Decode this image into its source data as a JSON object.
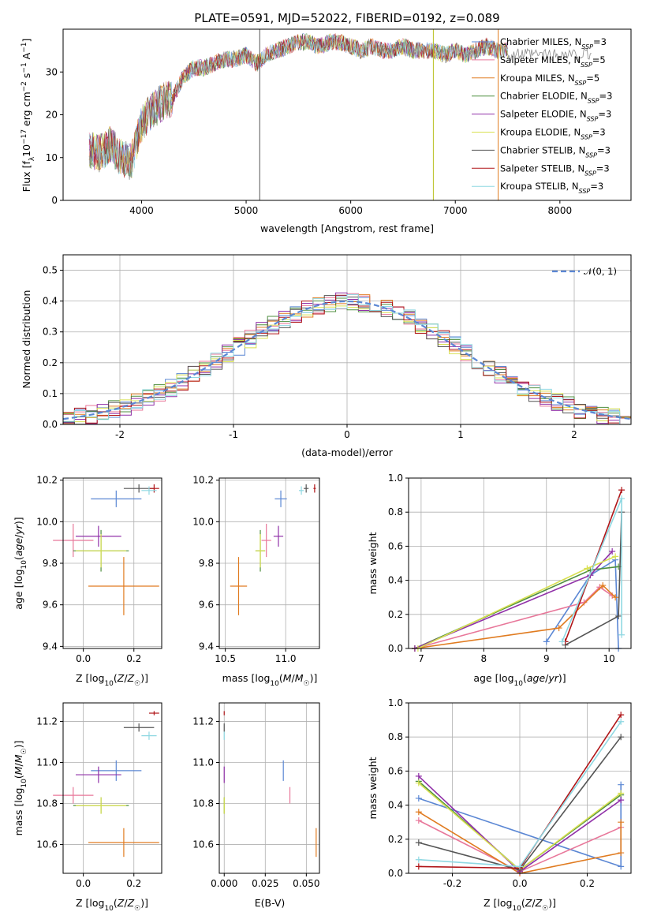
{
  "title": "PLATE=0591, MJD=52022, FIBERID=0192, z=0.089",
  "colors": {
    "Chabrier MILES": "#5b87d4",
    "Salpeter MILES": "#e8779a",
    "Kroupa MILES": "#e07b20",
    "Chabrier ELODIE": "#4f8f3f",
    "Salpeter ELODIE": "#9030a8",
    "Kroupa ELODIE": "#d8e050",
    "Chabrier STELIB": "#555555",
    "Salpeter STELIB": "#b01518",
    "Kroupa STELIB": "#8fd8e2"
  },
  "legend": [
    {
      "name": "Chabrier MILES",
      "nssp": "3"
    },
    {
      "name": "Salpeter MILES",
      "nssp": "5"
    },
    {
      "name": "Kroupa MILES",
      "nssp": "5"
    },
    {
      "name": "Chabrier ELODIE",
      "nssp": "3"
    },
    {
      "name": "Salpeter ELODIE",
      "nssp": "3"
    },
    {
      "name": "Kroupa ELODIE",
      "nssp": "3"
    },
    {
      "name": "Chabrier STELIB",
      "nssp": "3"
    },
    {
      "name": "Salpeter STELIB",
      "nssp": "3"
    },
    {
      "name": "Kroupa STELIB",
      "nssp": "3"
    }
  ],
  "chart_data": [
    {
      "type": "line",
      "id": "spectrum",
      "xlabel": "wavelength [Angstrom, rest frame]",
      "ylabel": "Flux [f_λ10^-17 erg cm^-2 s^-1 A^-1]",
      "xlim": [
        3250,
        8680
      ],
      "ylim": [
        0,
        40
      ],
      "xticks": [
        4000,
        5000,
        6000,
        7000,
        8000
      ],
      "yticks": [
        0,
        10,
        20,
        30
      ],
      "x": [
        3500,
        3600,
        3700,
        3800,
        3900,
        4000,
        4100,
        4200,
        4300,
        4400,
        4500,
        4600,
        4700,
        4800,
        4900,
        5000,
        5100,
        5200,
        5300,
        5400,
        5500,
        5600,
        5700,
        5800,
        5900,
        6000,
        6100,
        6200,
        6300,
        6400,
        6500,
        6600,
        6700,
        6800,
        6900,
        7000,
        7100,
        7200,
        7300,
        7400,
        7500
      ],
      "y": [
        12,
        11,
        13,
        10,
        9,
        18,
        21,
        23,
        24,
        29,
        31,
        31,
        32,
        33,
        33,
        34,
        32,
        34,
        35,
        36,
        37,
        37,
        36,
        37,
        37,
        36,
        35,
        36,
        35,
        35,
        36,
        35,
        35,
        35,
        34,
        35,
        34,
        35,
        36,
        35,
        35
      ],
      "grid": false
    },
    {
      "type": "histogram",
      "id": "residuals",
      "xlabel": "(data-model)/error",
      "ylabel": "Normed distribution",
      "xlim": [
        -2.5,
        2.5
      ],
      "ylim": [
        0,
        0.55
      ],
      "xticks": [
        -2,
        -1,
        0,
        1,
        2
      ],
      "yticks": [
        0.0,
        0.1,
        0.2,
        0.3,
        0.4,
        0.5
      ],
      "reference_label": "𝒩(0, 1)",
      "reference": "normal pdf, mean 0, sigma 1",
      "grid": true
    },
    {
      "type": "scatter",
      "id": "age-vs-Z",
      "xlabel": "Z [log10(Z/Z☉)]",
      "ylabel": "age  [log10(age/yr)]",
      "xlim": [
        -0.08,
        0.31
      ],
      "ylim": [
        9.39,
        10.21
      ],
      "xticks": [
        0.0,
        0.2
      ],
      "yticks": [
        9.4,
        9.6,
        9.8,
        10.0,
        10.2
      ],
      "grid": true,
      "points": [
        {
          "series": "Chabrier MILES",
          "x": 0.13,
          "y": 10.11,
          "xerr": 0.1,
          "yerr": 0.04
        },
        {
          "series": "Salpeter MILES",
          "x": -0.04,
          "y": 9.91,
          "xerr": 0.08,
          "yerr": 0.08
        },
        {
          "series": "Kroupa MILES",
          "x": 0.16,
          "y": 9.69,
          "xerr": 0.14,
          "yerr": 0.14
        },
        {
          "series": "Chabrier ELODIE",
          "x": 0.07,
          "y": 9.86,
          "xerr": 0.11,
          "yerr": 0.1
        },
        {
          "series": "Salpeter ELODIE",
          "x": 0.06,
          "y": 9.93,
          "xerr": 0.09,
          "yerr": 0.05
        },
        {
          "series": "Kroupa ELODIE",
          "x": 0.07,
          "y": 9.86,
          "xerr": 0.1,
          "yerr": 0.08
        },
        {
          "series": "Chabrier STELIB",
          "x": 0.22,
          "y": 10.16,
          "xerr": 0.06,
          "yerr": 0.02
        },
        {
          "series": "Salpeter STELIB",
          "x": 0.28,
          "y": 10.16,
          "xerr": 0.02,
          "yerr": 0.02
        },
        {
          "series": "Kroupa STELIB",
          "x": 0.26,
          "y": 10.15,
          "xerr": 0.03,
          "yerr": 0.02
        }
      ]
    },
    {
      "type": "scatter",
      "id": "age-vs-mass",
      "xlabel": "mass [log10(M/M☉)]",
      "ylabel": "",
      "xlim": [
        10.45,
        11.28
      ],
      "ylim": [
        9.39,
        10.21
      ],
      "xticks": [
        10.5,
        11.0
      ],
      "yticks": [
        9.4,
        9.6,
        9.8,
        10.0,
        10.2
      ],
      "grid": true,
      "points": [
        {
          "series": "Chabrier MILES",
          "x": 10.96,
          "y": 10.11,
          "xerr": 0.05,
          "yerr": 0.04
        },
        {
          "series": "Salpeter MILES",
          "x": 10.84,
          "y": 9.91,
          "xerr": 0.04,
          "yerr": 0.08
        },
        {
          "series": "Kroupa MILES",
          "x": 10.61,
          "y": 9.69,
          "xerr": 0.07,
          "yerr": 0.14
        },
        {
          "series": "Chabrier ELODIE",
          "x": 10.79,
          "y": 9.86,
          "xerr": 0.04,
          "yerr": 0.1
        },
        {
          "series": "Salpeter ELODIE",
          "x": 10.94,
          "y": 9.93,
          "xerr": 0.04,
          "yerr": 0.05
        },
        {
          "series": "Kroupa ELODIE",
          "x": 10.79,
          "y": 9.86,
          "xerr": 0.04,
          "yerr": 0.08
        },
        {
          "series": "Chabrier STELIB",
          "x": 11.17,
          "y": 10.16,
          "xerr": 0.02,
          "yerr": 0.02
        },
        {
          "series": "Salpeter STELIB",
          "x": 11.24,
          "y": 10.16,
          "xerr": 0.01,
          "yerr": 0.02
        },
        {
          "series": "Kroupa STELIB",
          "x": 11.13,
          "y": 10.15,
          "xerr": 0.02,
          "yerr": 0.02
        }
      ]
    },
    {
      "type": "line",
      "id": "weight-vs-age",
      "xlabel": "age  [log10(age/yr)]",
      "ylabel": "mass weight",
      "xlim": [
        6.8,
        10.35
      ],
      "ylim": [
        0,
        1
      ],
      "xticks": [
        7,
        8,
        9,
        10
      ],
      "yticks": [
        0.0,
        0.2,
        0.4,
        0.6,
        0.8,
        1.0
      ],
      "grid": true,
      "series": [
        {
          "series": "Chabrier MILES",
          "x": [
            9.0,
            9.7,
            10.1,
            10.15
          ],
          "y": [
            0.04,
            0.43,
            0.52,
            0.0
          ]
        },
        {
          "series": "Salpeter MILES",
          "x": [
            6.9,
            9.6,
            9.85,
            10.05
          ],
          "y": [
            0.0,
            0.27,
            0.36,
            0.31
          ]
        },
        {
          "series": "Kroupa MILES",
          "x": [
            6.9,
            9.2,
            9.9,
            10.1
          ],
          "y": [
            0.0,
            0.12,
            0.37,
            0.3
          ]
        },
        {
          "series": "Chabrier ELODIE",
          "x": [
            6.9,
            9.7,
            10.15
          ],
          "y": [
            0.0,
            0.46,
            0.48
          ]
        },
        {
          "series": "Salpeter ELODIE",
          "x": [
            6.9,
            9.7,
            10.05
          ],
          "y": [
            0.0,
            0.43,
            0.57
          ]
        },
        {
          "series": "Kroupa ELODIE",
          "x": [
            6.95,
            9.65,
            10.1
          ],
          "y": [
            0.0,
            0.47,
            0.54
          ]
        },
        {
          "series": "Chabrier STELIB",
          "x": [
            9.3,
            10.15,
            10.2
          ],
          "y": [
            0.02,
            0.19,
            0.8
          ]
        },
        {
          "series": "Salpeter STELIB",
          "x": [
            9.3,
            10.2
          ],
          "y": [
            0.04,
            0.93
          ]
        },
        {
          "series": "Kroupa STELIB",
          "x": [
            9.25,
            10.2,
            10.2
          ],
          "y": [
            0.04,
            0.88,
            0.08
          ]
        }
      ]
    },
    {
      "type": "scatter",
      "id": "mass-vs-Z",
      "xlabel": "Z [log10(Z/Z☉)]",
      "ylabel": "mass [log10(M/M☉)]",
      "xlim": [
        -0.08,
        0.31
      ],
      "ylim": [
        10.46,
        11.29
      ],
      "xticks": [
        0.0,
        0.2
      ],
      "yticks": [
        10.6,
        10.8,
        11.0,
        11.2
      ],
      "grid": true,
      "points": [
        {
          "series": "Chabrier MILES",
          "x": 0.13,
          "y": 10.96,
          "xerr": 0.1,
          "yerr": 0.05
        },
        {
          "series": "Salpeter MILES",
          "x": -0.04,
          "y": 10.84,
          "xerr": 0.08,
          "yerr": 0.04
        },
        {
          "series": "Kroupa MILES",
          "x": 0.16,
          "y": 10.61,
          "xerr": 0.14,
          "yerr": 0.07
        },
        {
          "series": "Chabrier ELODIE",
          "x": 0.07,
          "y": 10.79,
          "xerr": 0.11,
          "yerr": 0.04
        },
        {
          "series": "Salpeter ELODIE",
          "x": 0.06,
          "y": 10.94,
          "xerr": 0.09,
          "yerr": 0.04
        },
        {
          "series": "Kroupa ELODIE",
          "x": 0.07,
          "y": 10.79,
          "xerr": 0.1,
          "yerr": 0.04
        },
        {
          "series": "Chabrier STELIB",
          "x": 0.22,
          "y": 11.17,
          "xerr": 0.06,
          "yerr": 0.02
        },
        {
          "series": "Salpeter STELIB",
          "x": 0.28,
          "y": 11.24,
          "xerr": 0.02,
          "yerr": 0.01
        },
        {
          "series": "Kroupa STELIB",
          "x": 0.26,
          "y": 11.13,
          "xerr": 0.03,
          "yerr": 0.02
        }
      ]
    },
    {
      "type": "scatter",
      "id": "mass-vs-EBV",
      "xlabel": "E(B-V)",
      "ylabel": "",
      "xlim": [
        -0.003,
        0.058
      ],
      "ylim": [
        10.46,
        11.29
      ],
      "xticks": [
        0.0,
        0.025,
        0.05
      ],
      "xtick_labels": [
        "0.000",
        "0.025",
        "0.050"
      ],
      "yticks": [
        10.6,
        10.8,
        11.0,
        11.2
      ],
      "grid": true,
      "points": [
        {
          "series": "Chabrier MILES",
          "x": 0.036,
          "y": 10.96,
          "xerr": 0.0,
          "yerr": 0.05
        },
        {
          "series": "Salpeter MILES",
          "x": 0.04,
          "y": 10.84,
          "xerr": 0.0,
          "yerr": 0.04
        },
        {
          "series": "Kroupa MILES",
          "x": 0.056,
          "y": 10.61,
          "xerr": 0.0,
          "yerr": 0.07
        },
        {
          "series": "Chabrier ELODIE",
          "x": 0.0,
          "y": 10.79,
          "xerr": 0.0,
          "yerr": 0.04
        },
        {
          "series": "Salpeter ELODIE",
          "x": 0.0,
          "y": 10.94,
          "xerr": 0.0,
          "yerr": 0.04
        },
        {
          "series": "Kroupa ELODIE",
          "x": 0.0,
          "y": 10.79,
          "xerr": 0.0,
          "yerr": 0.04
        },
        {
          "series": "Chabrier STELIB",
          "x": 0.0,
          "y": 11.17,
          "xerr": 0.0,
          "yerr": 0.02
        },
        {
          "series": "Salpeter STELIB",
          "x": 0.0,
          "y": 11.24,
          "xerr": 0.0,
          "yerr": 0.01
        },
        {
          "series": "Kroupa STELIB",
          "x": 0.0,
          "y": 11.13,
          "xerr": 0.0,
          "yerr": 0.02
        }
      ]
    },
    {
      "type": "line",
      "id": "weight-vs-Z",
      "xlabel": "Z [log10(Z/Z☉)]",
      "ylabel": "mass weight",
      "xlim": [
        -0.33,
        0.33
      ],
      "ylim": [
        0,
        1
      ],
      "xticks": [
        -0.2,
        0.0,
        0.2
      ],
      "yticks": [
        0.0,
        0.2,
        0.4,
        0.6,
        0.8,
        1.0
      ],
      "grid": true,
      "series": [
        {
          "series": "Chabrier MILES",
          "x": [
            -0.3,
            0.3,
            0.3
          ],
          "y": [
            0.44,
            0.04,
            0.52
          ]
        },
        {
          "series": "Salpeter MILES",
          "x": [
            -0.3,
            0.0,
            0.3
          ],
          "y": [
            0.31,
            0.01,
            0.27
          ]
        },
        {
          "series": "Kroupa MILES",
          "x": [
            -0.3,
            0.0,
            0.3,
            0.3
          ],
          "y": [
            0.36,
            0.0,
            0.12,
            0.3
          ]
        },
        {
          "series": "Chabrier ELODIE",
          "x": [
            -0.3,
            0.0,
            0.3
          ],
          "y": [
            0.54,
            0.02,
            0.46
          ]
        },
        {
          "series": "Salpeter ELODIE",
          "x": [
            -0.3,
            0.0,
            0.3
          ],
          "y": [
            0.57,
            0.01,
            0.43
          ]
        },
        {
          "series": "Kroupa ELODIE",
          "x": [
            -0.3,
            0.0,
            0.3
          ],
          "y": [
            0.53,
            0.02,
            0.47
          ]
        },
        {
          "series": "Chabrier STELIB",
          "x": [
            -0.3,
            0.0,
            0.3
          ],
          "y": [
            0.18,
            0.02,
            0.8
          ]
        },
        {
          "series": "Salpeter STELIB",
          "x": [
            -0.3,
            0.0,
            0.3
          ],
          "y": [
            0.04,
            0.03,
            0.93
          ]
        },
        {
          "series": "Kroupa STELIB",
          "x": [
            -0.3,
            0.0,
            0.3
          ],
          "y": [
            0.08,
            0.04,
            0.89
          ]
        }
      ]
    }
  ]
}
